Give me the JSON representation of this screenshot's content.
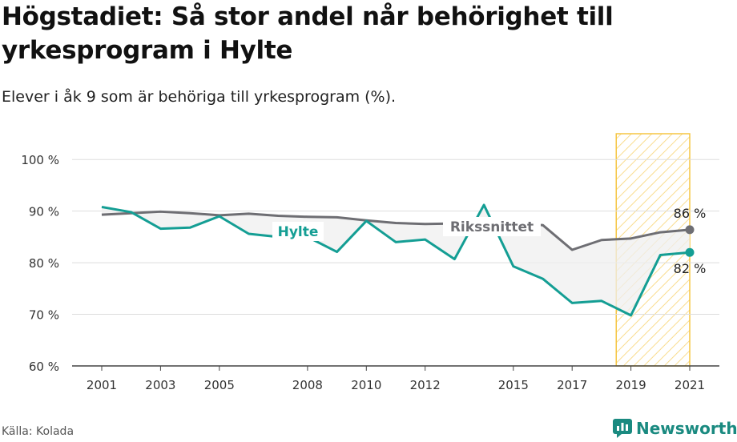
{
  "header": {
    "title": "Högstadiet: Så stor andel når behörighet till yrkesprogram i Hylte",
    "subtitle": "Elever i åk 9 som är behöriga till yrkesprogram (%)."
  },
  "footer": {
    "source": "Källa: Kolada",
    "brand": "Newsworthy"
  },
  "colors": {
    "hylte": "#149e94",
    "riket": "#6e6e73",
    "highlight": "#f5c542",
    "area": "#efefef",
    "grid": "#dddddd"
  },
  "chart_data": {
    "type": "line",
    "x": [
      2001,
      2002,
      2003,
      2004,
      2005,
      2006,
      2007,
      2008,
      2009,
      2010,
      2011,
      2012,
      2013,
      2014,
      2015,
      2016,
      2017,
      2018,
      2019,
      2020,
      2021
    ],
    "x_ticks": [
      2001,
      2003,
      2005,
      2008,
      2010,
      2012,
      2015,
      2017,
      2019,
      2021
    ],
    "y_ticks": [
      60,
      70,
      80,
      90,
      100
    ],
    "y_tick_labels": [
      "60 %",
      "70 %",
      "80 %",
      "90 %",
      "100 %"
    ],
    "ylim": [
      60,
      105
    ],
    "highlight_range": [
      2018.5,
      2021
    ],
    "series": [
      {
        "name": "Hylte",
        "key": "hylte",
        "values": [
          90.8,
          89.8,
          86.6,
          86.8,
          89.0,
          85.6,
          85.0,
          85.0,
          82.1,
          88.1,
          84.0,
          84.5,
          80.7,
          91.2,
          79.3,
          76.9,
          72.2,
          72.6,
          69.8,
          81.5,
          82.0
        ],
        "end_label": "82 %"
      },
      {
        "name": "Rikssnittet",
        "key": "riket",
        "values": [
          89.3,
          89.6,
          89.9,
          89.6,
          89.2,
          89.5,
          89.1,
          88.9,
          88.8,
          88.2,
          87.7,
          87.5,
          87.6,
          87.7,
          87.4,
          87.3,
          82.5,
          84.4,
          84.7,
          85.9,
          86.4
        ],
        "end_label": "86 %"
      }
    ],
    "grid": true,
    "legend": "inline labels"
  }
}
